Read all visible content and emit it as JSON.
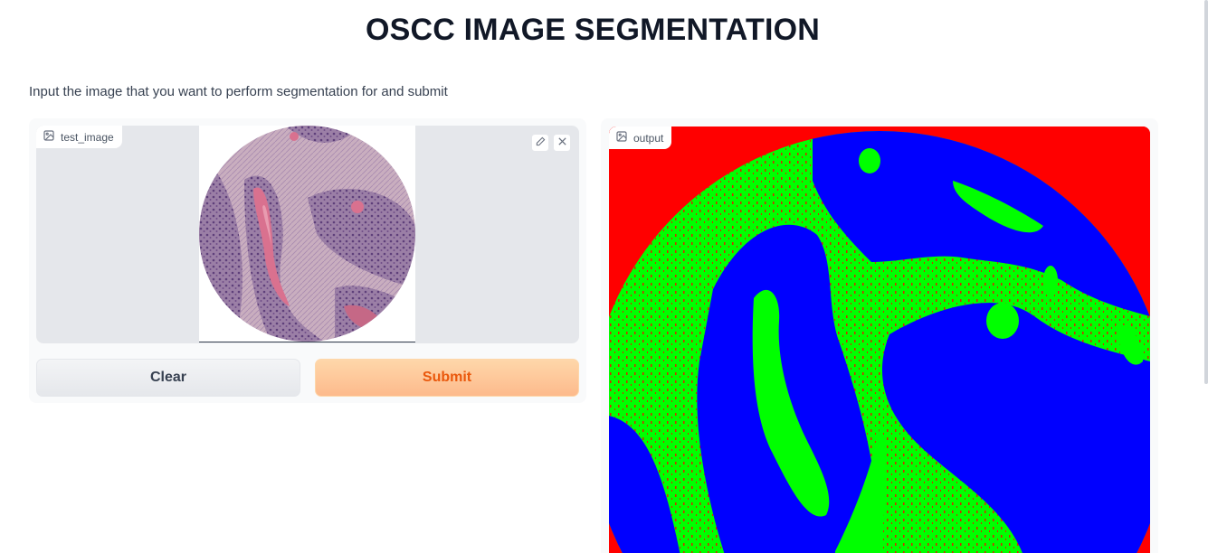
{
  "page": {
    "title": "OSCC IMAGE SEGMENTATION",
    "description": "Input the image that you want to perform segmentation for and submit"
  },
  "input_image": {
    "label": "test_image",
    "edit_icon": "pencil-icon",
    "clear_icon": "close-icon"
  },
  "buttons": {
    "clear": "Clear",
    "submit": "Submit"
  },
  "output_image": {
    "label": "output"
  },
  "colors": {
    "submit_text": "#ea580c",
    "submit_bg": "#fdba8c",
    "segment_background": "#ff0000",
    "segment_stroma": "#00ff00",
    "segment_epithelium": "#0000ff"
  }
}
